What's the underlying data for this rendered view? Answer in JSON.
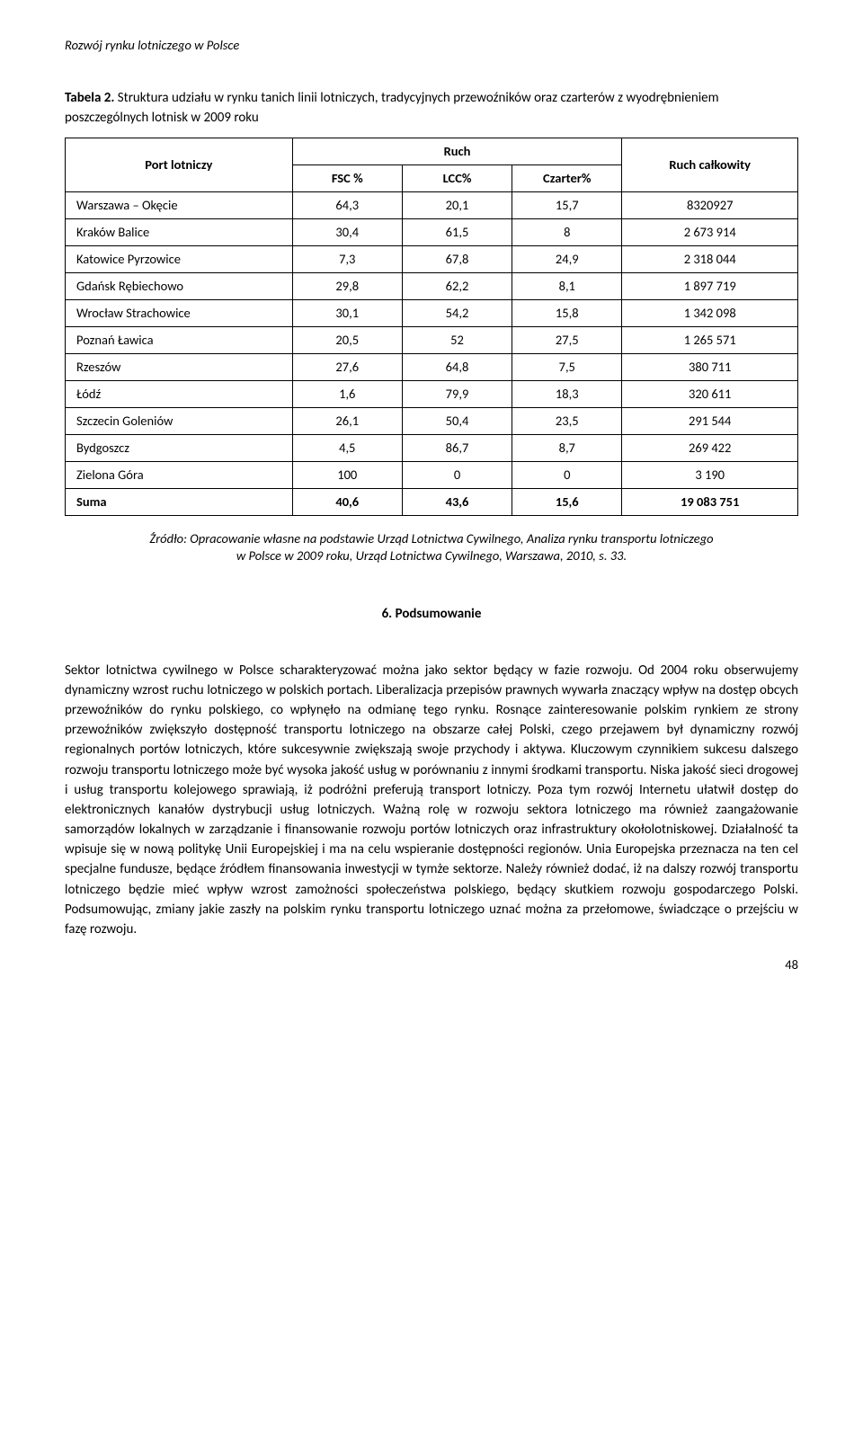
{
  "header": {
    "running_title": "Rozwój rynku lotniczego w Polsce"
  },
  "table": {
    "caption_label": "Tabela 2.",
    "caption_text": " Struktura udziału w rynku tanich linii lotniczych, tradycyjnych przewoźników oraz czarterów z wyodrębnieniem poszczególnych lotnisk w 2009 roku",
    "head": {
      "port": "Port lotniczy",
      "ruch": "Ruch",
      "ruch_calkowity": "Ruch całkowity",
      "fsc": "FSC %",
      "lcc": "LCC%",
      "czarter": "Czarter%"
    },
    "rows": [
      {
        "name": "Warszawa – Okęcie",
        "fsc": "64,3",
        "lcc": "20,1",
        "czarter": "15,7",
        "total": "8320927"
      },
      {
        "name": "Kraków Balice",
        "fsc": "30,4",
        "lcc": "61,5",
        "czarter": "8",
        "total": "2 673 914"
      },
      {
        "name": "Katowice Pyrzowice",
        "fsc": "7,3",
        "lcc": "67,8",
        "czarter": "24,9",
        "total": "2 318 044"
      },
      {
        "name": "Gdańsk Rębiechowo",
        "fsc": "29,8",
        "lcc": "62,2",
        "czarter": "8,1",
        "total": "1 897 719"
      },
      {
        "name": "Wrocław Strachowice",
        "fsc": "30,1",
        "lcc": "54,2",
        "czarter": "15,8",
        "total": "1 342 098"
      },
      {
        "name": "Poznań Ławica",
        "fsc": "20,5",
        "lcc": "52",
        "czarter": "27,5",
        "total": "1 265 571"
      },
      {
        "name": "Rzeszów",
        "fsc": "27,6",
        "lcc": "64,8",
        "czarter": "7,5",
        "total": "380 711"
      },
      {
        "name": "Łódź",
        "fsc": "1,6",
        "lcc": "79,9",
        "czarter": "18,3",
        "total": "320 611"
      },
      {
        "name": "Szczecin Goleniów",
        "fsc": "26,1",
        "lcc": "50,4",
        "czarter": "23,5",
        "total": "291 544"
      },
      {
        "name": "Bydgoszcz",
        "fsc": "4,5",
        "lcc": "86,7",
        "czarter": "8,7",
        "total": "269 422"
      },
      {
        "name": "Zielona Góra",
        "fsc": "100",
        "lcc": "0",
        "czarter": "0",
        "total": "3 190"
      }
    ],
    "sum_row": {
      "name": "Suma",
      "fsc": "40,6",
      "lcc": "43,6",
      "czarter": "15,6",
      "total": "19 083 751"
    },
    "styling": {
      "border_color": "#000000",
      "header_font_weight": "bold",
      "cell_font_size_pt": 11,
      "column_widths_pct": [
        31,
        15,
        15,
        15,
        24
      ]
    }
  },
  "source": {
    "line1": "Źródło: Opracowanie własne na podstawie Urząd Lotnictwa Cywilnego, Analiza rynku transportu lotniczego",
    "line2": "w Polsce w 2009 roku, Urząd Lotnictwa Cywilnego, Warszawa, 2010, s. 33."
  },
  "section": {
    "heading": "6.   Podsumowanie",
    "paragraph": "Sektor lotnictwa cywilnego w Polsce scharakteryzować można jako sektor będący w fazie rozwoju. Od 2004 roku obserwujemy dynamiczny wzrost ruchu lotniczego w polskich portach. Liberalizacja przepisów prawnych wywarła znaczący wpływ na dostęp obcych przewoźników do rynku polskiego, co wpłynęło na odmianę tego rynku. Rosnące zainteresowanie polskim rynkiem ze strony przewoźników zwiększyło dostępność transportu lotniczego na obszarze całej Polski, czego przejawem był dynamiczny rozwój regionalnych portów lotniczych, które sukcesywnie zwiększają swoje przychody i aktywa. Kluczowym czynnikiem sukcesu dalszego rozwoju transportu lotniczego może być wysoka jakość usług w porównaniu z innymi środkami transportu. Niska jakość sieci drogowej i usług transportu kolejowego sprawiają, iż podróżni preferują transport lotniczy. Poza tym rozwój Internetu ułatwił dostęp do elektronicznych kanałów dystrybucji usług lotniczych. Ważną rolę w rozwoju sektora lotniczego ma również zaangażowanie samorządów lokalnych w zarządzanie i finansowanie rozwoju portów lotniczych oraz infrastruktury okołolotniskowej. Działalność ta wpisuje się w nową politykę Unii Europejskiej i ma na celu wspieranie dostępności regionów. Unia Europejska przeznacza na ten cel specjalne fundusze, będące źródłem finansowania inwestycji w tymże sektorze. Należy również dodać, iż na dalszy rozwój transportu lotniczego będzie mieć wpływ wzrost zamożności społeczeństwa polskiego, będący skutkiem rozwoju gospodarczego Polski. Podsumowując, zmiany jakie zaszły na polskim rynku transportu lotniczego uznać można za przełomowe, świadczące o przejściu w fazę rozwoju."
  },
  "footer": {
    "page_number": "48"
  },
  "colors": {
    "text": "#000000",
    "background": "#ffffff",
    "border": "#000000"
  }
}
